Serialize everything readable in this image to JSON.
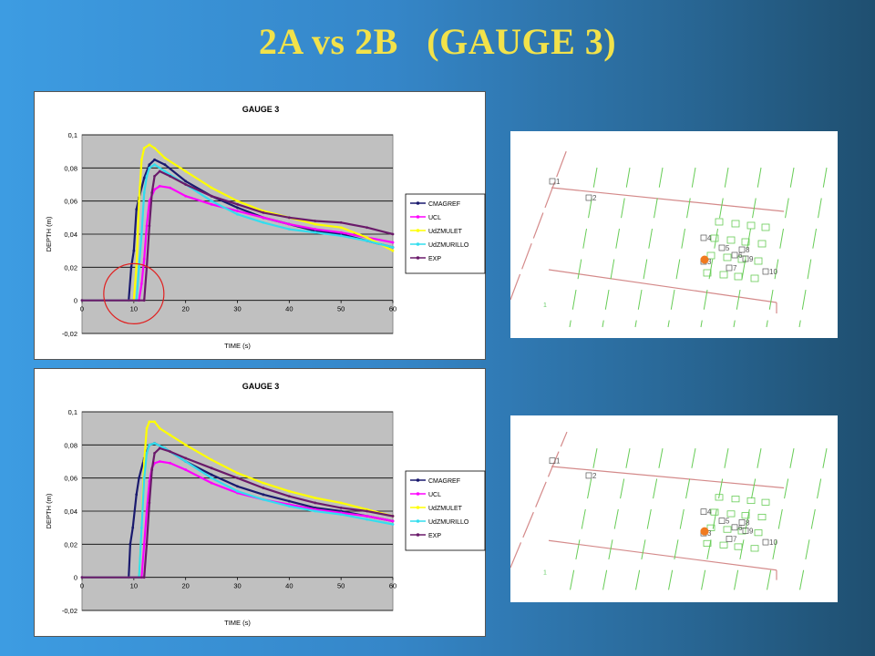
{
  "slide": {
    "title": "2A vs 2B   (GAUGE 3)"
  },
  "colors": {
    "CMAGREF": "#1a1a6e",
    "UCL": "#ff00ff",
    "UdZMULET": "#ffff00",
    "UdZMURILLO": "#33ddee",
    "EXP": "#6a1a6a",
    "plot_bg": "#c0c0c0",
    "highlight_circle": "#e02020",
    "gauge_marker": "#f07a20"
  },
  "chart_data": [
    {
      "type": "line",
      "title": "GAUGE 3",
      "xlabel": "TIME (s)",
      "ylabel": "DEPTH (m)",
      "xlim": [
        0,
        60
      ],
      "ylim": [
        -0.02,
        0.1
      ],
      "x_ticks": [
        "0",
        "10",
        "20",
        "30",
        "40",
        "50",
        "60"
      ],
      "y_ticks": [
        "0,1",
        "0,08",
        "0,06",
        "0,04",
        "0,02",
        "0",
        "-0,02"
      ],
      "grid": "horizontal",
      "legend": "right",
      "annotation": "red circle around arrival time near t = 10 s",
      "series": [
        {
          "name": "CMAGREF",
          "x": [
            0,
            9,
            9.5,
            10,
            10.5,
            11,
            12,
            13,
            14,
            16,
            20,
            25,
            30,
            35,
            40,
            45,
            50,
            55,
            60
          ],
          "y": [
            0,
            0,
            0.02,
            0.03,
            0.055,
            0.062,
            0.074,
            0.082,
            0.085,
            0.082,
            0.072,
            0.063,
            0.056,
            0.05,
            0.046,
            0.042,
            0.04,
            0.036,
            0.032
          ]
        },
        {
          "name": "UCL",
          "x": [
            0,
            11,
            11.5,
            12,
            12.5,
            13,
            14,
            15,
            17,
            20,
            25,
            30,
            35,
            40,
            45,
            50,
            55,
            60
          ],
          "y": [
            0,
            0,
            0.01,
            0.025,
            0.045,
            0.06,
            0.067,
            0.069,
            0.068,
            0.063,
            0.058,
            0.054,
            0.05,
            0.046,
            0.043,
            0.041,
            0.038,
            0.035
          ]
        },
        {
          "name": "UdZMULET",
          "x": [
            0,
            10,
            10.5,
            11,
            11.5,
            12,
            13,
            14,
            16,
            20,
            25,
            30,
            35,
            40,
            45,
            50,
            55,
            60
          ],
          "y": [
            0,
            0,
            0.02,
            0.06,
            0.085,
            0.092,
            0.094,
            0.092,
            0.086,
            0.078,
            0.068,
            0.06,
            0.054,
            0.05,
            0.046,
            0.044,
            0.038,
            0.03
          ]
        },
        {
          "name": "UdZMURILLO",
          "x": [
            0,
            10.5,
            11,
            11.5,
            12,
            12.5,
            13,
            14,
            16,
            20,
            25,
            30,
            35,
            40,
            45,
            50,
            55,
            60
          ],
          "y": [
            0,
            0,
            0.02,
            0.04,
            0.065,
            0.075,
            0.08,
            0.082,
            0.078,
            0.07,
            0.06,
            0.052,
            0.047,
            0.043,
            0.041,
            0.039,
            0.036,
            0.032
          ]
        },
        {
          "name": "EXP",
          "x": [
            0,
            12,
            12.5,
            13,
            13.5,
            14,
            15,
            17,
            20,
            25,
            30,
            35,
            40,
            45,
            50,
            55,
            60
          ],
          "y": [
            0,
            0,
            0.02,
            0.045,
            0.065,
            0.075,
            0.078,
            0.075,
            0.07,
            0.063,
            0.058,
            0.053,
            0.05,
            0.048,
            0.047,
            0.044,
            0.04
          ]
        }
      ]
    },
    {
      "type": "line",
      "title": "GAUGE 3",
      "xlabel": "TIME (s)",
      "ylabel": "DEPTH (m)",
      "xlim": [
        0,
        60
      ],
      "ylim": [
        -0.02,
        0.1
      ],
      "x_ticks": [
        "0",
        "10",
        "20",
        "30",
        "40",
        "50",
        "60"
      ],
      "y_ticks": [
        "0,1",
        "0,08",
        "0,06",
        "0,04",
        "0,02",
        "0",
        "-0,02"
      ],
      "grid": "horizontal",
      "legend": "right",
      "series": [
        {
          "name": "CMAGREF",
          "x": [
            0,
            9,
            9.3,
            9.8,
            10.5,
            11,
            12,
            13,
            14,
            16,
            20,
            25,
            30,
            35,
            40,
            45,
            50,
            55,
            60
          ],
          "y": [
            0,
            0,
            0.02,
            0.03,
            0.05,
            0.06,
            0.072,
            0.08,
            0.081,
            0.078,
            0.07,
            0.062,
            0.055,
            0.05,
            0.046,
            0.042,
            0.04,
            0.037,
            0.034
          ]
        },
        {
          "name": "UCL",
          "x": [
            0,
            11.5,
            12,
            12.5,
            13,
            13.5,
            14,
            15,
            17,
            20,
            25,
            30,
            35,
            40,
            45,
            50,
            55,
            60
          ],
          "y": [
            0,
            0,
            0.02,
            0.04,
            0.058,
            0.066,
            0.069,
            0.07,
            0.069,
            0.065,
            0.057,
            0.051,
            0.047,
            0.044,
            0.041,
            0.039,
            0.037,
            0.034
          ]
        },
        {
          "name": "UdZMULET",
          "x": [
            0,
            11,
            11.5,
            12,
            12.5,
            13,
            14,
            15,
            17,
            20,
            25,
            30,
            35,
            40,
            45,
            50,
            55,
            60
          ],
          "y": [
            0,
            0,
            0.03,
            0.07,
            0.09,
            0.094,
            0.094,
            0.09,
            0.086,
            0.08,
            0.071,
            0.063,
            0.057,
            0.052,
            0.048,
            0.045,
            0.041,
            0.037
          ]
        },
        {
          "name": "UdZMURILLO",
          "x": [
            0,
            11,
            11.5,
            12,
            12.5,
            13,
            14,
            16,
            20,
            25,
            30,
            35,
            40,
            45,
            50,
            55,
            60
          ],
          "y": [
            0,
            0,
            0.03,
            0.06,
            0.075,
            0.08,
            0.081,
            0.078,
            0.07,
            0.06,
            0.052,
            0.047,
            0.043,
            0.04,
            0.038,
            0.035,
            0.032
          ]
        },
        {
          "name": "EXP",
          "x": [
            0,
            12,
            12.5,
            13,
            13.5,
            14,
            15,
            17,
            20,
            25,
            30,
            35,
            40,
            45,
            50,
            55,
            60
          ],
          "y": [
            0,
            0,
            0.02,
            0.045,
            0.065,
            0.075,
            0.078,
            0.076,
            0.072,
            0.066,
            0.06,
            0.054,
            0.049,
            0.045,
            0.042,
            0.04,
            0.037
          ]
        }
      ]
    }
  ],
  "maps": [
    {
      "gauges": [
        "1",
        "2",
        "3",
        "4",
        "5",
        "6",
        "7",
        "8",
        "9",
        "10"
      ],
      "marker_gauge": "3",
      "wall_label": "1"
    },
    {
      "gauges": [
        "1",
        "2",
        "3",
        "4",
        "5",
        "6",
        "7",
        "8",
        "9",
        "10"
      ],
      "marker_gauge": "3",
      "wall_label": "1"
    }
  ]
}
